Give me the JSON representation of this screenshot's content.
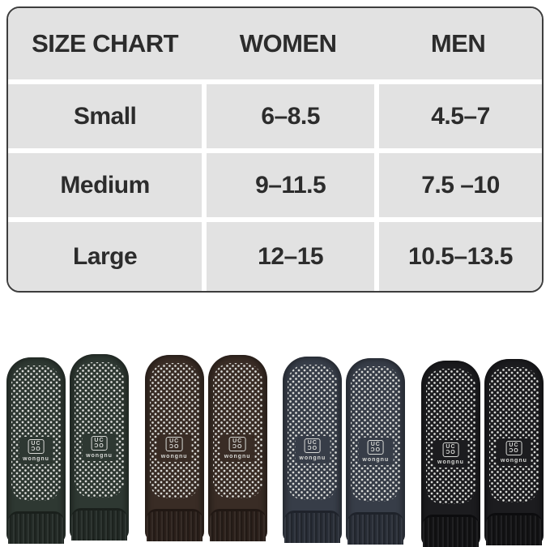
{
  "size_chart": {
    "headers": [
      "SIZE CHART",
      "WOMEN",
      "MEN"
    ],
    "rows": [
      {
        "size": "Small",
        "women": "6–8.5",
        "men": "4.5–7"
      },
      {
        "size": "Medium",
        "women": "9–11.5",
        "men": "7.5 –10"
      },
      {
        "size": "Large",
        "women": "12–15",
        "men": "10.5–13.5"
      }
    ],
    "cell_background": "#e2e2e2",
    "border_color": "#3d3d3d",
    "text_color": "#2c2c2c"
  },
  "socks": {
    "dot_color": "#d8d9d6",
    "logo": {
      "monogram_line1": "UC",
      "monogram_line2": "ƆO",
      "brand_text": "wongnu"
    },
    "pairs": [
      {
        "color_name": "dark-green",
        "base_color": "#2e3832",
        "cuff_color": "#222925",
        "seam_color": "#1a201c"
      },
      {
        "color_name": "dark-brown",
        "base_color": "#392c25",
        "cuff_color": "#2a1f1a",
        "seam_color": "#201713"
      },
      {
        "color_name": "slate-gray",
        "base_color": "#373d48",
        "cuff_color": "#282d36",
        "seam_color": "#1f232b"
      },
      {
        "color_name": "black",
        "base_color": "#1c1c1f",
        "cuff_color": "#121214",
        "seam_color": "#0c0c0e"
      }
    ]
  }
}
